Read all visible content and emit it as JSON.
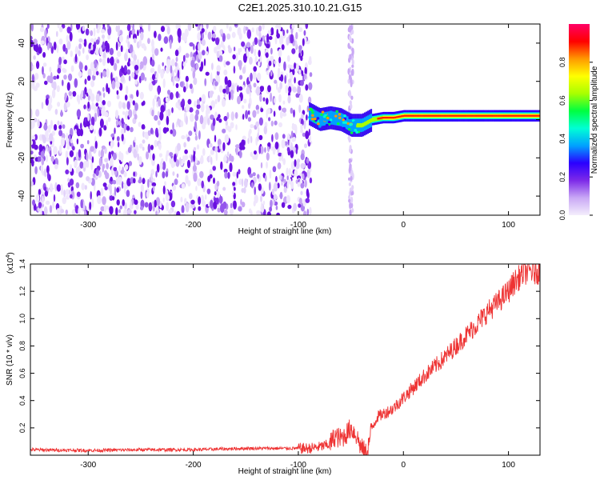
{
  "title": "C2E1.2025.310.10.21.G15",
  "chart_data": [
    {
      "type": "heatmap",
      "name": "spectrogram",
      "xlabel": "Height of straight line (km)",
      "ylabel": "Frequency (Hz)",
      "xlim": [
        -355,
        130
      ],
      "ylim": [
        -50,
        50
      ],
      "xticks": [
        -300,
        -200,
        -100,
        0,
        100
      ],
      "xtick_labels": [
        "-300",
        "-200",
        "-100",
        "0",
        "100"
      ],
      "yticks": [
        -40,
        -20,
        0,
        20,
        40
      ],
      "ytick_labels": [
        "-40",
        "-20",
        "0",
        "20",
        "40"
      ],
      "noise_region_x": [
        -355,
        -88
      ],
      "noise_gap_x": [
        -52,
        -48
      ],
      "signal_track": {
        "x": [
          -90,
          -80,
          -70,
          -60,
          -50,
          -40,
          -30,
          -20,
          -10,
          0,
          20,
          40,
          60,
          80,
          100,
          130
        ],
        "frequency": [
          3,
          0,
          1,
          0,
          -3,
          -3,
          0,
          1,
          1,
          2,
          2,
          2,
          2,
          2,
          2,
          2
        ]
      },
      "colorbar": {
        "label": "Normalized spectral amplitude",
        "range": [
          0,
          1
        ],
        "ticks": [
          0,
          0.2,
          0.4,
          0.6,
          0.8
        ],
        "tick_labels": [
          "0.0",
          "0.2",
          "0.4",
          "0.6",
          "0.8"
        ],
        "colors": [
          "#f4eefc",
          "#c9a8f5",
          "#7d2ae8",
          "#2b00ff",
          "#00a2ff",
          "#00ffd5",
          "#00ff40",
          "#a8ff00",
          "#ffff00",
          "#ff9900",
          "#ff0000",
          "#ff0066"
        ]
      }
    },
    {
      "type": "line",
      "name": "snr",
      "xlabel": "Height of straight line (km)",
      "ylabel": "SNR (10 * v/v)",
      "y_scale_label": "(x10",
      "y_scale_exponent": "4",
      "y_scale_suffix": ")",
      "xlim": [
        -355,
        130
      ],
      "ylim": [
        0,
        1.4
      ],
      "xticks": [
        -300,
        -200,
        -100,
        0,
        100
      ],
      "xtick_labels": [
        "-300",
        "-200",
        "-100",
        "0",
        "100"
      ],
      "yticks": [
        0.2,
        0.4,
        0.6,
        0.8,
        1.0,
        1.2,
        1.4
      ],
      "ytick_labels": [
        "0.2",
        "0.4",
        "0.6",
        "0.8",
        "1.0",
        "1.2",
        "1.4"
      ],
      "color": "#ee3333",
      "x": [
        -355,
        -300,
        -250,
        -200,
        -150,
        -120,
        -100,
        -90,
        -80,
        -70,
        -65,
        -60,
        -55,
        -50,
        -45,
        -40,
        -35,
        -30,
        -25,
        -20,
        -15,
        -10,
        -5,
        0,
        10,
        20,
        30,
        40,
        50,
        60,
        70,
        80,
        90,
        100,
        105,
        110,
        115,
        120,
        125,
        130
      ],
      "values": [
        0.04,
        0.035,
        0.04,
        0.04,
        0.05,
        0.05,
        0.05,
        0.05,
        0.06,
        0.08,
        0.14,
        0.12,
        0.15,
        0.2,
        0.15,
        0.05,
        0.01,
        0.2,
        0.28,
        0.3,
        0.32,
        0.34,
        0.38,
        0.42,
        0.5,
        0.58,
        0.65,
        0.72,
        0.8,
        0.88,
        0.96,
        1.05,
        1.12,
        1.2,
        1.26,
        1.3,
        1.34,
        1.35,
        1.34,
        1.35
      ]
    }
  ]
}
